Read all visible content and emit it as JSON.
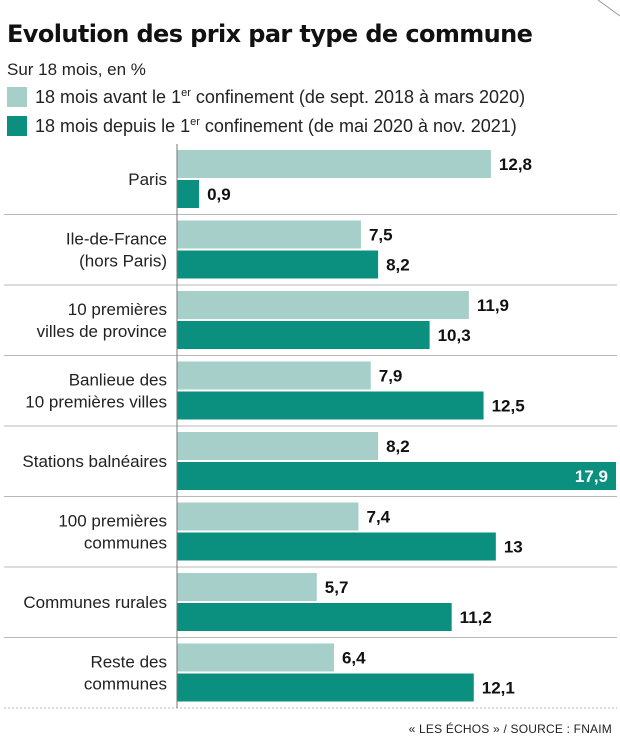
{
  "title": "Evolution des prix par type de commune",
  "subtitle": "Sur 18 mois, en %",
  "legend": [
    {
      "pre": "18 mois avant le 1",
      "sup": "er",
      "post": " confinement (de sept. 2018 à mars 2020)",
      "color": "#a6cfca"
    },
    {
      "pre": "18 mois depuis le 1",
      "sup": "er",
      "post": " confinement (de mai 2020 à nov. 2021)",
      "color": "#0b8f7e"
    }
  ],
  "source": "« LES ÉCHOS » / SOURCE : FNAIM",
  "chart_data": {
    "type": "bar",
    "orientation": "horizontal",
    "categories": [
      [
        "Paris"
      ],
      [
        "Ile-de-France",
        "(hors Paris)"
      ],
      [
        "10 premières",
        "villes de province"
      ],
      [
        "Banlieue des",
        "10 premières villes"
      ],
      [
        "Stations balnéaires"
      ],
      [
        "100 premières",
        "communes"
      ],
      [
        "Communes rurales"
      ],
      [
        "Reste des",
        "communes"
      ]
    ],
    "series": [
      {
        "name": "18 mois avant le 1er confinement (de sept. 2018 à mars 2020)",
        "color": "#a6cfca",
        "values": [
          12.8,
          7.5,
          11.9,
          7.9,
          8.2,
          7.4,
          5.7,
          6.4
        ],
        "labels": [
          "12,8",
          "7,5",
          "11,9",
          "7,9",
          "8,2",
          "7,4",
          "5,7",
          "6,4"
        ]
      },
      {
        "name": "18 mois depuis le 1er confinement (de mai 2020 à nov. 2021)",
        "color": "#0b8f7e",
        "values": [
          0.9,
          8.2,
          10.3,
          12.5,
          17.9,
          13,
          11.2,
          12.1
        ],
        "labels": [
          "0,9",
          "8,2",
          "10,3",
          "12,5",
          "17,9",
          "13",
          "11,2",
          "12,1"
        ]
      }
    ],
    "xlim": [
      0,
      17.9
    ],
    "grid": false,
    "legend_position": "top-left"
  }
}
